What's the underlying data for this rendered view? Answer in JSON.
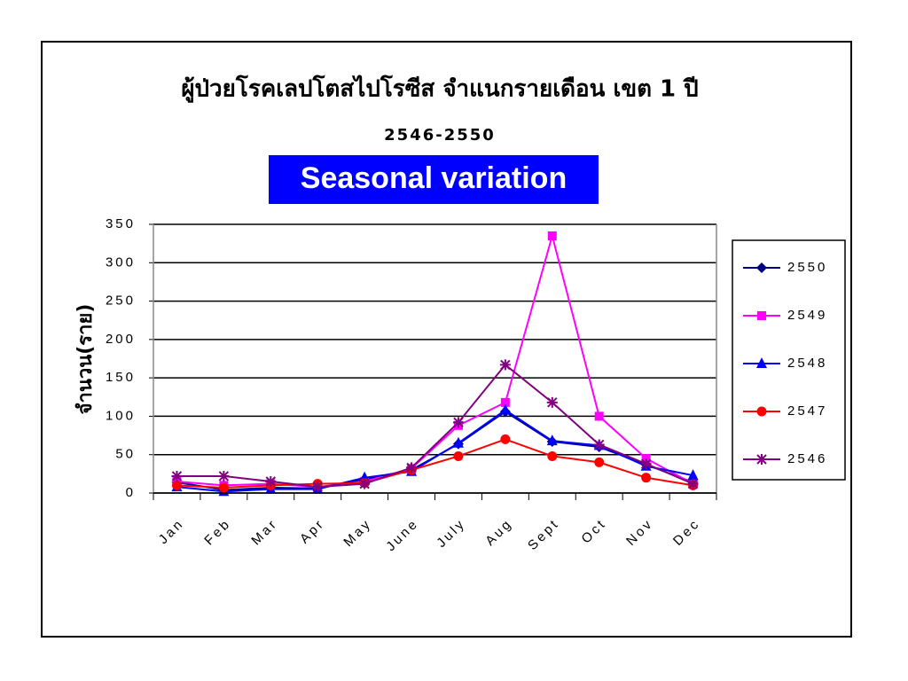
{
  "chart_data": {
    "type": "line",
    "title": "ผู้ป่วยโรคเลปโตสไปโรซีส จำแนกรายเดือน เขต 1 ปี",
    "subtitle": "2546-2550",
    "annotation": "Seasonal variation",
    "y_label": "จำนวน(ราย)",
    "categories": [
      "Jan",
      "Feb",
      "Mar",
      "Apr",
      "May",
      "June",
      "July",
      "Aug",
      "Sept",
      "Oct",
      "Nov",
      "Dec"
    ],
    "series": [
      {
        "name": "2550",
        "color": "#000080",
        "marker": "diamond",
        "values": [
          14,
          4,
          7,
          6,
          18,
          30,
          64,
          106,
          67,
          60,
          37,
          14
        ]
      },
      {
        "name": "2549",
        "color": "#ff00ff",
        "marker": "square",
        "values": [
          15,
          10,
          12,
          8,
          15,
          32,
          88,
          118,
          335,
          100,
          45,
          12
        ]
      },
      {
        "name": "2548",
        "color": "#0000ff",
        "marker": "triangle",
        "values": [
          8,
          2,
          5,
          5,
          20,
          28,
          65,
          108,
          68,
          62,
          35,
          23
        ]
      },
      {
        "name": "2547",
        "color": "#ff0000",
        "marker": "circle",
        "values": [
          10,
          7,
          10,
          12,
          13,
          30,
          48,
          70,
          48,
          40,
          20,
          10
        ]
      },
      {
        "name": "2546",
        "color": "#800080",
        "marker": "star",
        "values": [
          22,
          22,
          15,
          8,
          12,
          33,
          92,
          167,
          118,
          63,
          38,
          12
        ]
      }
    ],
    "ylim": [
      0,
      350
    ],
    "yticks": [
      0,
      50,
      100,
      150,
      200,
      250,
      300,
      350
    ],
    "grid": true,
    "legend": "right"
  }
}
